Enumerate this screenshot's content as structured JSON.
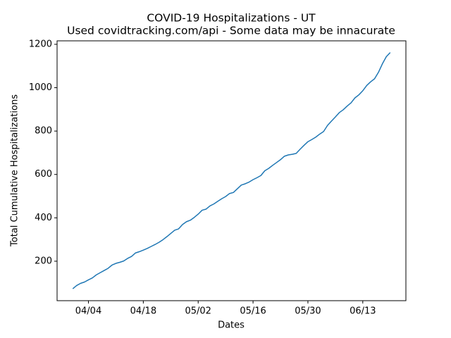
{
  "chart_data": {
    "type": "line",
    "title": "COVID-19 Hospitalizations - UT",
    "subtitle": "Used covidtracking.com/api - Some data may be innacurate",
    "x_label": "Dates",
    "y_label": "Total Cumulative Hospitalizations",
    "color": "#1f77b4",
    "x": [
      "03/31",
      "04/01",
      "04/02",
      "04/03",
      "04/04",
      "04/05",
      "04/06",
      "04/07",
      "04/08",
      "04/09",
      "04/10",
      "04/11",
      "04/12",
      "04/13",
      "04/14",
      "04/15",
      "04/16",
      "04/17",
      "04/18",
      "04/19",
      "04/20",
      "04/21",
      "04/22",
      "04/23",
      "04/24",
      "04/25",
      "04/26",
      "04/27",
      "04/28",
      "04/29",
      "04/30",
      "05/01",
      "05/02",
      "05/03",
      "05/04",
      "05/05",
      "05/06",
      "05/07",
      "05/08",
      "05/09",
      "05/10",
      "05/11",
      "05/12",
      "05/13",
      "05/14",
      "05/15",
      "05/16",
      "05/17",
      "05/18",
      "05/19",
      "05/20",
      "05/21",
      "05/22",
      "05/23",
      "05/24",
      "05/25",
      "05/26",
      "05/27",
      "05/28",
      "05/29",
      "05/30",
      "05/31",
      "06/01",
      "06/02",
      "06/03",
      "06/04",
      "06/05",
      "06/06",
      "06/07",
      "06/08",
      "06/09",
      "06/10",
      "06/11",
      "06/12",
      "06/13",
      "06/14",
      "06/15",
      "06/16",
      "06/17",
      "06/18",
      "06/19",
      "06/20"
    ],
    "values": [
      73,
      88,
      98,
      104,
      114,
      123,
      137,
      147,
      157,
      167,
      182,
      190,
      195,
      201,
      213,
      222,
      238,
      244,
      251,
      259,
      268,
      277,
      287,
      299,
      313,
      328,
      343,
      349,
      369,
      382,
      389,
      402,
      417,
      435,
      440,
      455,
      464,
      476,
      488,
      498,
      512,
      517,
      534,
      551,
      557,
      565,
      576,
      585,
      595,
      617,
      628,
      642,
      655,
      668,
      684,
      690,
      693,
      697,
      716,
      734,
      751,
      761,
      772,
      786,
      798,
      826,
      846,
      865,
      885,
      898,
      915,
      930,
      953,
      967,
      986,
      1010,
      1027,
      1041,
      1071,
      1110,
      1143,
      1162
    ],
    "xlim": [
      "03/27",
      "06/24"
    ],
    "xticks": [
      "04/04",
      "04/18",
      "05/02",
      "05/16",
      "05/30",
      "06/13"
    ],
    "ylim": [
      18,
      1216
    ],
    "yticks": [
      200,
      400,
      600,
      800,
      1000,
      1200
    ]
  }
}
